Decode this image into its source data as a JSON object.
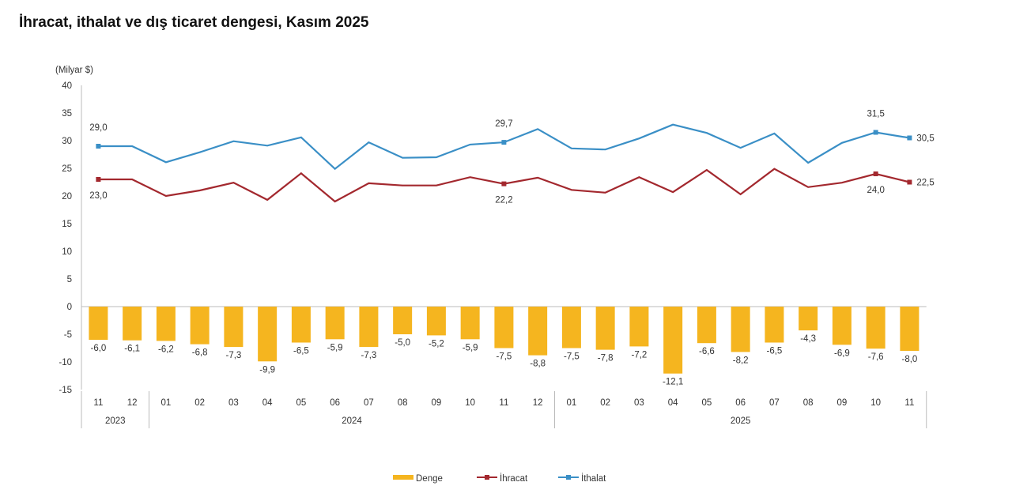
{
  "chart_data": {
    "type": "bar+line",
    "title": "İhracat, ithalat ve dış ticaret dengesi, Kasım 2025",
    "ylabel": "(Milyar $)",
    "ylim": [
      -15,
      40
    ],
    "yticks": [
      40,
      35,
      30,
      25,
      20,
      15,
      10,
      5,
      0,
      -5,
      -10,
      -15
    ],
    "categories": [
      "11",
      "12",
      "01",
      "02",
      "03",
      "04",
      "05",
      "06",
      "07",
      "08",
      "09",
      "10",
      "11",
      "12",
      "01",
      "02",
      "03",
      "04",
      "05",
      "06",
      "07",
      "08",
      "09",
      "10",
      "11"
    ],
    "years": [
      {
        "label": "2023",
        "start": 0,
        "end": 1
      },
      {
        "label": "2024",
        "start": 2,
        "end": 13
      },
      {
        "label": "2025",
        "start": 14,
        "end": 24
      }
    ],
    "series": [
      {
        "name": "Denge",
        "type": "bar",
        "color": "#F5B51F",
        "values": [
          -6.0,
          -6.1,
          -6.2,
          -6.8,
          -7.3,
          -9.9,
          -6.5,
          -5.9,
          -7.3,
          -5.0,
          -5.2,
          -5.9,
          -7.5,
          -8.8,
          -7.5,
          -7.8,
          -7.2,
          -12.1,
          -6.6,
          -8.2,
          -6.5,
          -4.3,
          -6.9,
          -7.6,
          -8.0
        ],
        "labels": [
          "-6,0",
          "-6,1",
          "-6,2",
          "-6,8",
          "-7,3",
          "-9,9",
          "-6,5",
          "-5,9",
          "-7,3",
          "-5,0",
          "-5,2",
          "-5,9",
          "-7,5",
          "-8,8",
          "-7,5",
          "-7,8",
          "-7,2",
          "-12,1",
          "-6,6",
          "-8,2",
          "-6,5",
          "-4,3",
          "-6,9",
          "-7,6",
          "-8,0"
        ]
      },
      {
        "name": "İhracat",
        "type": "line",
        "color": "#A3282E",
        "values": [
          23.0,
          23.0,
          20.0,
          21.0,
          22.4,
          19.3,
          24.1,
          19.0,
          22.3,
          21.9,
          21.9,
          23.4,
          22.2,
          23.3,
          21.1,
          20.6,
          23.4,
          20.7,
          24.7,
          20.3,
          24.9,
          21.6,
          22.4,
          24.0,
          22.5
        ],
        "labeled": {
          "0": "23,0",
          "12": "22,2",
          "23": "24,0",
          "24": "22,5"
        }
      },
      {
        "name": "İthalat",
        "type": "line",
        "color": "#3A8FC6",
        "values": [
          29.0,
          29.0,
          26.1,
          27.9,
          29.9,
          29.1,
          30.6,
          24.9,
          29.7,
          26.9,
          27.0,
          29.3,
          29.7,
          32.1,
          28.6,
          28.4,
          30.4,
          32.9,
          31.4,
          28.7,
          31.3,
          26.0,
          29.6,
          31.5,
          30.5
        ],
        "labeled": {
          "0": "29,0",
          "12": "29,7",
          "23": "31,5",
          "24": "30,5"
        }
      }
    ],
    "legend": "bottom-center"
  }
}
